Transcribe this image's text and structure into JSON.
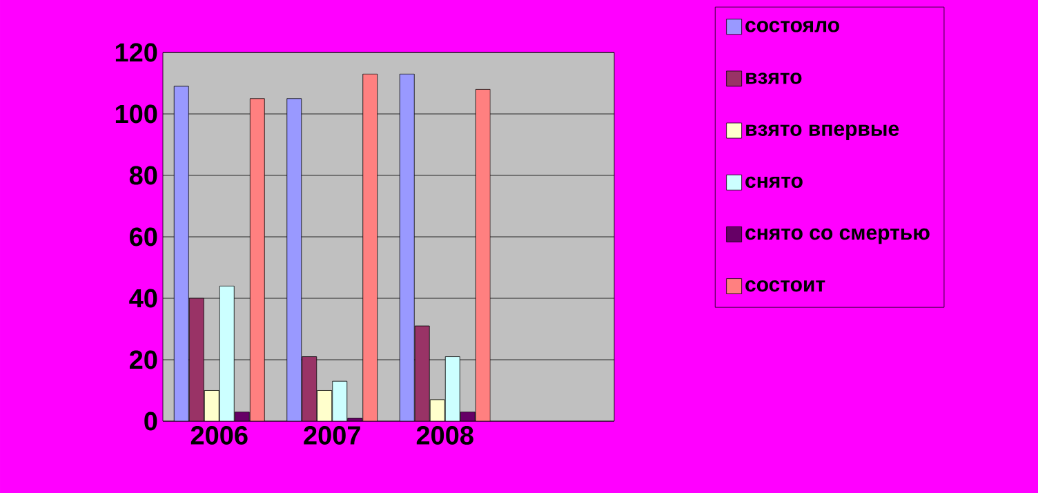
{
  "chart_data": {
    "type": "bar",
    "categories": [
      "2006",
      "2007",
      "2008",
      null
    ],
    "series": [
      {
        "name": "состояло",
        "color": "#9999ff",
        "values": [
          109,
          105,
          113,
          null
        ]
      },
      {
        "name": "взято",
        "color": "#993366",
        "values": [
          40,
          21,
          31,
          null
        ]
      },
      {
        "name": "взято впервые",
        "color": "#ffffcc",
        "values": [
          10,
          10,
          7,
          null
        ]
      },
      {
        "name": "снято",
        "color": "#ccffff",
        "values": [
          44,
          13,
          21,
          null
        ]
      },
      {
        "name": "снято со смертью",
        "color": "#660066",
        "values": [
          3,
          1,
          3,
          null
        ]
      },
      {
        "name": "состоит",
        "color": "#ff8080",
        "values": [
          105,
          113,
          108,
          null
        ]
      }
    ],
    "ylim": [
      0,
      120
    ],
    "yticks": [
      0,
      20,
      40,
      60,
      80,
      100,
      120
    ],
    "grid": "y",
    "legend": "right"
  }
}
